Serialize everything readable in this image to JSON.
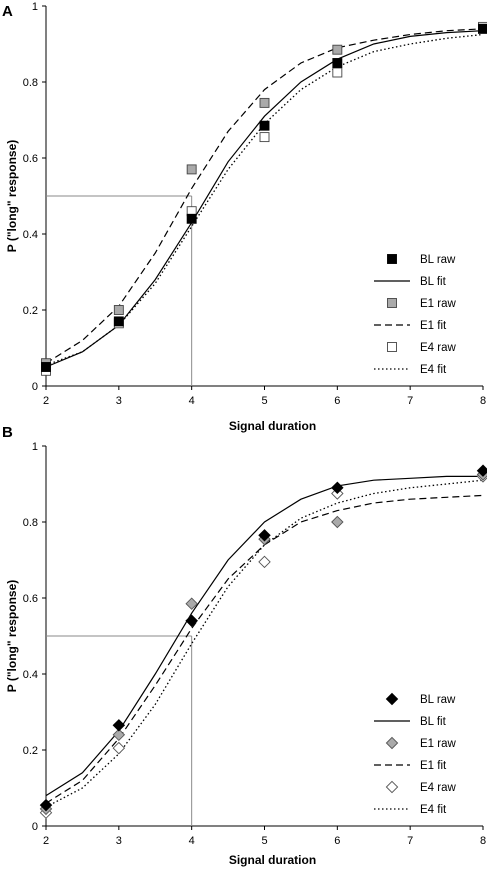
{
  "chart_data": [
    {
      "type": "line",
      "panel_label": "A",
      "xlabel": "Signal duration",
      "ylabel": "P (\"long\" response)",
      "xlim": [
        2,
        8
      ],
      "ylim": [
        0,
        1
      ],
      "x_ticks": [
        2,
        3,
        4,
        5,
        6,
        7,
        8
      ],
      "y_ticks": [
        0,
        0.2,
        0.4,
        0.6,
        0.8,
        1
      ],
      "y_tick_labels": [
        "0",
        "0.2",
        "0.4",
        "0.6",
        "0.8",
        "1"
      ],
      "raw_marker": "square",
      "reference_point": {
        "x": 4,
        "y": 0.5
      },
      "legend_position": "right",
      "series": [
        {
          "name": "BL raw",
          "kind": "raw",
          "fill": "#000000",
          "x": [
            2,
            3,
            4,
            5,
            6,
            8
          ],
          "y": [
            0.05,
            0.17,
            0.44,
            0.685,
            0.85,
            0.94
          ]
        },
        {
          "name": "BL fit",
          "kind": "fit",
          "dash": "solid",
          "x": [
            2,
            2.5,
            3,
            3.5,
            4,
            4.5,
            5,
            5.5,
            6,
            6.5,
            7,
            7.5,
            8
          ],
          "y": [
            0.05,
            0.09,
            0.16,
            0.28,
            0.43,
            0.59,
            0.71,
            0.8,
            0.86,
            0.9,
            0.92,
            0.93,
            0.935
          ]
        },
        {
          "name": "E1 raw",
          "kind": "raw",
          "fill": "#aaaaaa",
          "x": [
            2,
            3,
            4,
            5,
            6,
            8
          ],
          "y": [
            0.06,
            0.2,
            0.57,
            0.745,
            0.885,
            0.94
          ]
        },
        {
          "name": "E1 fit",
          "kind": "fit",
          "dash": "dashed",
          "x": [
            2,
            2.5,
            3,
            3.5,
            4,
            4.5,
            5,
            5.5,
            6,
            6.5,
            7,
            7.5,
            8
          ],
          "y": [
            0.06,
            0.12,
            0.21,
            0.35,
            0.52,
            0.67,
            0.78,
            0.85,
            0.89,
            0.91,
            0.925,
            0.935,
            0.94
          ]
        },
        {
          "name": "E4 raw",
          "kind": "raw",
          "fill": "#ffffff",
          "x": [
            2,
            3,
            4,
            5,
            6,
            8
          ],
          "y": [
            0.04,
            0.165,
            0.46,
            0.655,
            0.825,
            0.945
          ]
        },
        {
          "name": "E4 fit",
          "kind": "fit",
          "dash": "dotted",
          "x": [
            2,
            2.5,
            3,
            3.5,
            4,
            4.5,
            5,
            5.5,
            6,
            6.5,
            7,
            7.5,
            8
          ],
          "y": [
            0.055,
            0.09,
            0.16,
            0.27,
            0.42,
            0.57,
            0.69,
            0.78,
            0.84,
            0.88,
            0.9,
            0.915,
            0.925
          ]
        }
      ]
    },
    {
      "type": "line",
      "panel_label": "B",
      "xlabel": "Signal duration",
      "ylabel": "P (\"long\" response)",
      "xlim": [
        2,
        8
      ],
      "ylim": [
        0,
        1
      ],
      "x_ticks": [
        2,
        3,
        4,
        5,
        6,
        7,
        8
      ],
      "y_ticks": [
        0,
        0.2,
        0.4,
        0.6,
        0.8,
        1
      ],
      "y_tick_labels": [
        "0",
        "0.2",
        "0.4",
        "0.6",
        "0.8",
        "1"
      ],
      "raw_marker": "diamond",
      "reference_point": {
        "x": 4,
        "y": 0.5
      },
      "legend_position": "right",
      "series": [
        {
          "name": "BL raw",
          "kind": "raw",
          "fill": "#000000",
          "x": [
            2,
            3,
            4,
            5,
            6,
            8
          ],
          "y": [
            0.055,
            0.265,
            0.54,
            0.765,
            0.89,
            0.935
          ]
        },
        {
          "name": "BL fit",
          "kind": "fit",
          "dash": "solid",
          "x": [
            2,
            2.5,
            3,
            3.5,
            4,
            4.5,
            5,
            5.5,
            6,
            6.5,
            7,
            7.5,
            8
          ],
          "y": [
            0.08,
            0.14,
            0.25,
            0.4,
            0.56,
            0.7,
            0.8,
            0.86,
            0.895,
            0.91,
            0.915,
            0.92,
            0.92
          ]
        },
        {
          "name": "E1 raw",
          "kind": "raw",
          "fill": "#aaaaaa",
          "x": [
            2,
            3,
            4,
            5,
            6,
            8
          ],
          "y": [
            0.045,
            0.24,
            0.585,
            0.755,
            0.8,
            0.925
          ]
        },
        {
          "name": "E1 fit",
          "kind": "fit",
          "dash": "dashed",
          "x": [
            2,
            2.5,
            3,
            3.5,
            4,
            4.5,
            5,
            5.5,
            6,
            6.5,
            7,
            7.5,
            8
          ],
          "y": [
            0.06,
            0.12,
            0.23,
            0.37,
            0.52,
            0.65,
            0.74,
            0.8,
            0.83,
            0.85,
            0.86,
            0.865,
            0.87
          ]
        },
        {
          "name": "E4 raw",
          "kind": "raw",
          "fill": "#ffffff",
          "x": [
            2,
            3,
            4,
            5,
            6,
            8
          ],
          "y": [
            0.035,
            0.205,
            0.54,
            0.695,
            0.875,
            0.92
          ]
        },
        {
          "name": "E4 fit",
          "kind": "fit",
          "dash": "dotted",
          "x": [
            2,
            2.5,
            3,
            3.5,
            4,
            4.5,
            5,
            5.5,
            6,
            6.5,
            7,
            7.5,
            8
          ],
          "y": [
            0.05,
            0.1,
            0.19,
            0.32,
            0.48,
            0.63,
            0.74,
            0.81,
            0.85,
            0.875,
            0.89,
            0.9,
            0.91
          ]
        }
      ]
    }
  ]
}
